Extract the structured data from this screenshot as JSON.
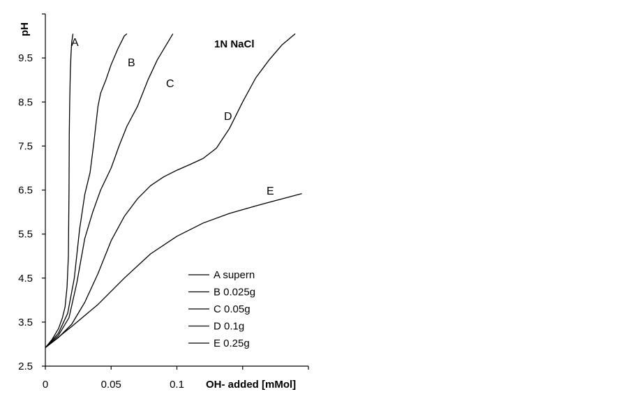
{
  "chart_data": {
    "type": "line",
    "title": "",
    "annotation": "1N NaCl",
    "xlabel": "OH- added [mMol]",
    "ylabel": "pH",
    "xlim": [
      0,
      0.2
    ],
    "ylim": [
      2.5,
      10.5
    ],
    "x_ticks": [
      "0",
      "0.05",
      "0.1"
    ],
    "y_ticks": [
      "2.5",
      "3.5",
      "4.5",
      "5.5",
      "6.5",
      "7.5",
      "8.5",
      "9.5"
    ],
    "x_tick_values": [
      0,
      0.05,
      0.1
    ],
    "y_tick_values": [
      2.5,
      3.5,
      4.5,
      5.5,
      6.5,
      7.5,
      8.5,
      9.5
    ],
    "grid": false,
    "legend_position": "bottom-right",
    "series": [
      {
        "name": "A supern",
        "curve_label": "A",
        "x": [
          0,
          0.005,
          0.01,
          0.013,
          0.015,
          0.0165,
          0.0175,
          0.018,
          0.0182,
          0.0185,
          0.019,
          0.0195,
          0.02,
          0.021
        ],
        "y": [
          2.92,
          3.1,
          3.35,
          3.6,
          3.85,
          4.3,
          5.0,
          6.5,
          7.8,
          8.5,
          9.2,
          9.6,
          9.85,
          10.05
        ]
      },
      {
        "name": "B 0.025g",
        "curve_label": "B",
        "x": [
          0,
          0.01,
          0.017,
          0.022,
          0.026,
          0.03,
          0.034,
          0.037,
          0.04,
          0.042,
          0.046,
          0.05,
          0.055,
          0.06,
          0.062
        ],
        "y": [
          2.92,
          3.25,
          3.7,
          4.5,
          5.6,
          6.4,
          6.9,
          7.6,
          8.4,
          8.7,
          9.0,
          9.35,
          9.7,
          10.0,
          10.05
        ]
      },
      {
        "name": "C 0.05g",
        "curve_label": "C",
        "x": [
          0,
          0.01,
          0.018,
          0.024,
          0.03,
          0.036,
          0.042,
          0.05,
          0.056,
          0.062,
          0.07,
          0.078,
          0.085,
          0.092,
          0.097
        ],
        "y": [
          2.92,
          3.2,
          3.6,
          4.4,
          5.4,
          6.0,
          6.5,
          7.0,
          7.5,
          7.95,
          8.4,
          9.0,
          9.45,
          9.8,
          10.05
        ]
      },
      {
        "name": "D 0.1g",
        "curve_label": "D",
        "x": [
          0,
          0.01,
          0.02,
          0.03,
          0.04,
          0.05,
          0.06,
          0.07,
          0.08,
          0.09,
          0.1,
          0.11,
          0.12,
          0.13,
          0.14,
          0.15,
          0.16,
          0.17,
          0.18,
          0.19
        ],
        "y": [
          2.92,
          3.15,
          3.45,
          3.95,
          4.6,
          5.35,
          5.9,
          6.3,
          6.6,
          6.8,
          6.95,
          7.08,
          7.22,
          7.45,
          7.9,
          8.5,
          9.05,
          9.45,
          9.8,
          10.05
        ]
      },
      {
        "name": "E 0.25g",
        "curve_label": "E",
        "x": [
          0,
          0.02,
          0.04,
          0.06,
          0.08,
          0.1,
          0.12,
          0.14,
          0.16,
          0.18,
          0.195
        ],
        "y": [
          2.92,
          3.4,
          3.9,
          4.5,
          5.05,
          5.45,
          5.75,
          5.97,
          6.14,
          6.3,
          6.42
        ]
      }
    ]
  }
}
